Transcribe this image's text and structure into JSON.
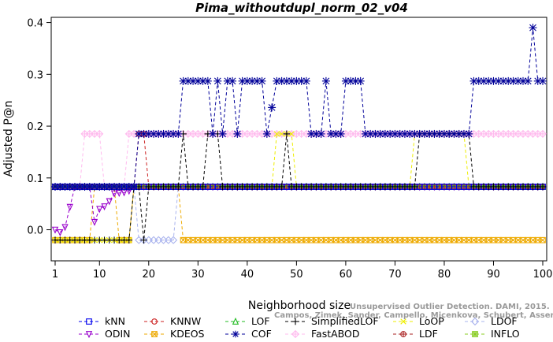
{
  "chart_data": {
    "type": "line",
    "title": "Pima_withoutdupl_norm_02_v04",
    "xlabel": "Neighborhood size",
    "ylabel": "Adjusted P@n",
    "xlim": [
      1,
      100
    ],
    "ylim": [
      -0.06,
      0.41
    ],
    "x_ticks": [
      1,
      10,
      20,
      30,
      40,
      50,
      60,
      70,
      80,
      90,
      100
    ],
    "y_ticks": [
      0.0,
      0.1,
      0.2,
      0.3,
      0.4
    ],
    "x_tick_labels": [
      "1",
      "10",
      "20",
      "30",
      "40",
      "50",
      "60",
      "70",
      "80",
      "90",
      "100"
    ],
    "y_tick_labels": [
      "0.0",
      "0.1",
      "0.2",
      "0.3",
      "0.4"
    ],
    "grid": false,
    "legend_position": "bottom",
    "series": [
      {
        "name": "kNN",
        "color": "#0000ee",
        "marker": "square",
        "segments": [
          [
            1,
            0.083
          ],
          [
            100,
            0.083
          ]
        ]
      },
      {
        "name": "KNNW",
        "color": "#cc2222",
        "marker": "circle",
        "segments": [
          [
            1,
            0.083
          ],
          [
            17,
            0.083
          ],
          [
            18,
            0.185
          ],
          [
            19,
            0.185
          ],
          [
            20,
            0.083
          ],
          [
            100,
            0.083
          ]
        ]
      },
      {
        "name": "LOF",
        "color": "#22bb22",
        "marker": "triangle-up",
        "segments": [
          [
            1,
            0.083
          ],
          [
            100,
            0.083
          ]
        ]
      },
      {
        "name": "SimplifiedLOF",
        "color": "#000000",
        "marker": "plus",
        "segments": [
          [
            1,
            -0.02
          ],
          [
            16,
            -0.02
          ],
          [
            17,
            0.083
          ],
          [
            18,
            0.083
          ],
          [
            19,
            -0.02
          ],
          [
            20,
            0.083
          ],
          [
            26,
            0.083
          ],
          [
            27,
            0.185
          ],
          [
            28,
            0.083
          ],
          [
            31,
            0.083
          ],
          [
            32,
            0.185
          ],
          [
            34,
            0.185
          ],
          [
            35,
            0.083
          ],
          [
            47,
            0.083
          ],
          [
            48,
            0.185
          ],
          [
            49,
            0.083
          ],
          [
            74,
            0.083
          ],
          [
            75,
            0.185
          ],
          [
            85,
            0.185
          ],
          [
            86,
            0.083
          ],
          [
            100,
            0.083
          ]
        ]
      },
      {
        "name": "LoOP",
        "color": "#eeee00",
        "marker": "cross",
        "segments": [
          [
            1,
            -0.02
          ],
          [
            16,
            -0.02
          ],
          [
            17,
            0.083
          ],
          [
            45,
            0.083
          ],
          [
            46,
            0.185
          ],
          [
            49,
            0.185
          ],
          [
            50,
            0.083
          ],
          [
            73,
            0.083
          ],
          [
            74,
            0.185
          ],
          [
            84,
            0.185
          ],
          [
            85,
            0.083
          ],
          [
            100,
            0.083
          ]
        ]
      },
      {
        "name": "LDOF",
        "color": "#aab4ee",
        "marker": "diamond",
        "segments": [
          [
            1,
            0.083
          ],
          [
            17,
            0.083
          ],
          [
            18,
            -0.02
          ],
          [
            25,
            -0.02
          ],
          [
            26,
            0.083
          ],
          [
            100,
            0.083
          ]
        ]
      },
      {
        "name": "ODIN",
        "color": "#9900cc",
        "marker": "triangle-down",
        "segments": [
          [
            1,
            0.0
          ],
          [
            2,
            -0.005
          ],
          [
            3,
            0.005
          ],
          [
            5,
            0.083
          ],
          [
            8,
            0.083
          ],
          [
            9,
            0.015
          ],
          [
            10,
            0.04
          ],
          [
            11,
            0.045
          ],
          [
            12,
            0.055
          ],
          [
            13,
            0.07
          ],
          [
            15,
            0.072
          ],
          [
            16,
            0.075
          ],
          [
            17,
            0.083
          ],
          [
            100,
            0.083
          ]
        ]
      },
      {
        "name": "KDEOS",
        "color": "#eeaa00",
        "marker": "square-x",
        "segments": [
          [
            1,
            -0.02
          ],
          [
            8,
            -0.02
          ],
          [
            9,
            0.083
          ],
          [
            13,
            0.083
          ],
          [
            14,
            -0.02
          ],
          [
            16,
            -0.02
          ],
          [
            17,
            0.083
          ],
          [
            26,
            0.083
          ],
          [
            27,
            -0.02
          ],
          [
            100,
            -0.02
          ]
        ]
      },
      {
        "name": "COF",
        "color": "#000099",
        "marker": "asterisk",
        "segments": [
          [
            1,
            0.083
          ],
          [
            17,
            0.083
          ],
          [
            18,
            0.185
          ],
          [
            26,
            0.185
          ],
          [
            27,
            0.287
          ],
          [
            32,
            0.287
          ],
          [
            33,
            0.185
          ],
          [
            34,
            0.287
          ],
          [
            35,
            0.185
          ],
          [
            36,
            0.287
          ],
          [
            37,
            0.287
          ],
          [
            38,
            0.185
          ],
          [
            39,
            0.287
          ],
          [
            43,
            0.287
          ],
          [
            44,
            0.185
          ],
          [
            46,
            0.287
          ],
          [
            52,
            0.287
          ],
          [
            53,
            0.185
          ],
          [
            55,
            0.185
          ],
          [
            56,
            0.287
          ],
          [
            57,
            0.185
          ],
          [
            59,
            0.185
          ],
          [
            60,
            0.287
          ],
          [
            63,
            0.287
          ],
          [
            64,
            0.185
          ],
          [
            85,
            0.185
          ],
          [
            86,
            0.287
          ],
          [
            97,
            0.287
          ],
          [
            98,
            0.39
          ],
          [
            99,
            0.287
          ],
          [
            100,
            0.287
          ]
        ]
      },
      {
        "name": "FastABOD",
        "color": "#ffbbee",
        "marker": "diamond-plus",
        "segments": [
          [
            1,
            0.083
          ],
          [
            6,
            0.083
          ],
          [
            7,
            0.185
          ],
          [
            10,
            0.185
          ],
          [
            11,
            0.083
          ],
          [
            15,
            0.083
          ],
          [
            16,
            0.185
          ],
          [
            100,
            0.185
          ]
        ]
      },
      {
        "name": "LDF",
        "color": "#aa2222",
        "marker": "circle-plus",
        "segments": [
          [
            1,
            0.083
          ],
          [
            100,
            0.083
          ]
        ]
      },
      {
        "name": "INFLO",
        "color": "#88cc22",
        "marker": "square-star",
        "segments": [
          [
            1,
            0.083
          ],
          [
            100,
            0.083
          ]
        ]
      }
    ],
    "watermark": "Unsupervised Outlier Detection. DAMI, 2015.",
    "watermark2": "Campos, Zimek, Sander, Campello, Micenkova, Schubert, Assent, Houle"
  }
}
